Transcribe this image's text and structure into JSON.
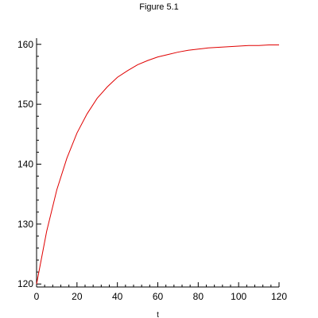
{
  "chart_data": {
    "type": "line",
    "title": "Figure 5.1",
    "xlabel": "t",
    "ylabel": "",
    "xlim": [
      0,
      120
    ],
    "ylim": [
      119.5,
      160.5
    ],
    "x_ticks": [
      0,
      20,
      40,
      60,
      80,
      100,
      120
    ],
    "y_ticks": [
      120,
      130,
      140,
      150,
      160
    ],
    "grid": false,
    "legend": "none",
    "series": [
      {
        "color": "#e00000",
        "x": [
          0,
          5,
          10,
          15,
          20,
          25,
          30,
          35,
          40,
          45,
          50,
          55,
          60,
          65,
          70,
          75,
          80,
          85,
          90,
          95,
          100,
          105,
          110,
          115,
          120
        ],
        "values": [
          120.0,
          128.8,
          135.7,
          141.0,
          145.2,
          148.4,
          151.0,
          152.9,
          154.5,
          155.6,
          156.6,
          157.3,
          157.9,
          158.3,
          158.7,
          159.0,
          159.2,
          159.4,
          159.5,
          159.6,
          159.7,
          159.8,
          159.8,
          159.9,
          159.9
        ]
      }
    ]
  }
}
